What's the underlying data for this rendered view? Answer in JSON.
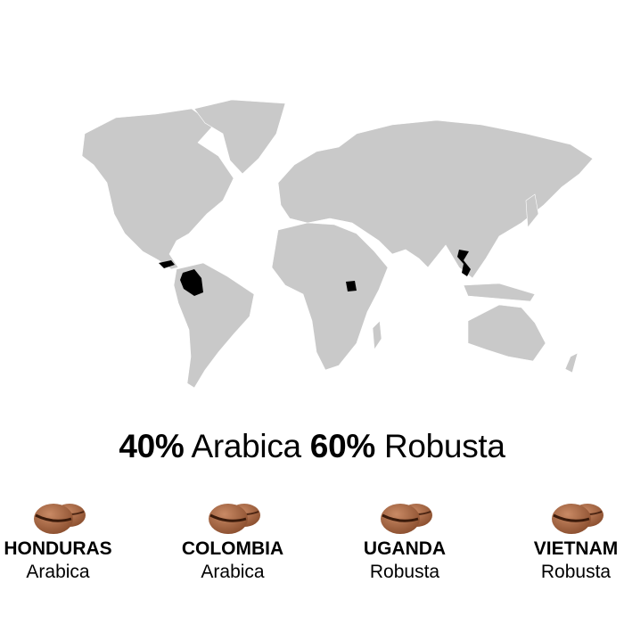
{
  "headline": {
    "arabica_pct": "40%",
    "arabica_label": "Arabica",
    "robusta_pct": "60%",
    "robusta_label": "Robusta"
  },
  "map": {
    "land_color": "#c9c9c9",
    "highlight_color": "#000000",
    "highlighted": [
      "Honduras",
      "Colombia",
      "Uganda",
      "Vietnam"
    ]
  },
  "origins": [
    {
      "name": "HONDURAS",
      "type": "Arabica"
    },
    {
      "name": "COLOMBIA",
      "type": "Arabica"
    },
    {
      "name": "UGANDA",
      "type": "Robusta"
    },
    {
      "name": "VIETNAM",
      "type": "Robusta"
    }
  ]
}
